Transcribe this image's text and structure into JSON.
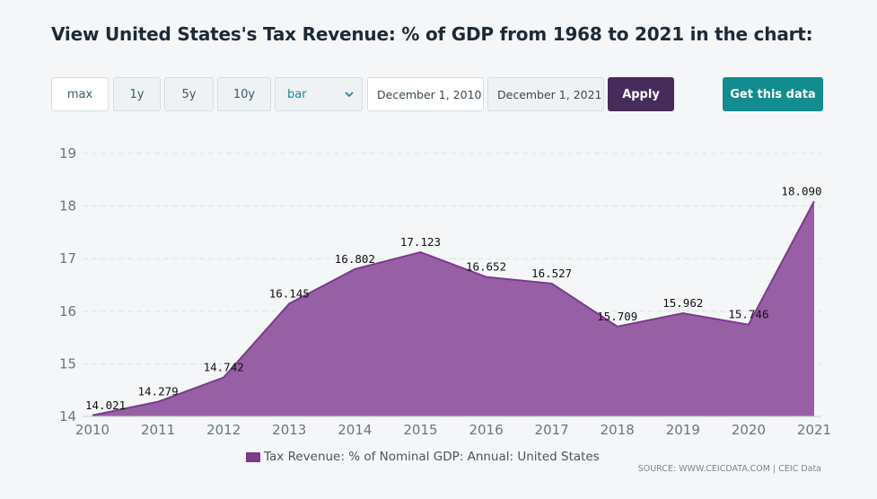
{
  "heading": "View United States's Tax Revenue: % of GDP from 1968 to 2021 in the chart:",
  "controls": {
    "range_buttons": [
      "max",
      "1y",
      "5y",
      "10y"
    ],
    "chart_type_value": "bar",
    "start_date": "December 1, 2010",
    "end_date": "December 1, 2021",
    "apply_label": "Apply",
    "get_data_label": "Get this data"
  },
  "colors": {
    "area_fill": "#8a4b97",
    "area_stroke": "#7c3a8c",
    "apply_bg": "#472c5b",
    "get_data_bg": "#128c8e"
  },
  "chart_data": {
    "type": "area",
    "categories": [
      "2010",
      "2011",
      "2012",
      "2013",
      "2014",
      "2015",
      "2016",
      "2017",
      "2018",
      "2019",
      "2020",
      "2021"
    ],
    "series": [
      {
        "name": "Tax Revenue: % of Nominal GDP: Annual: United States",
        "values": [
          14.021,
          14.279,
          14.742,
          16.145,
          16.802,
          17.123,
          16.652,
          16.527,
          15.709,
          15.962,
          15.746,
          18.09
        ],
        "labels": [
          "14.021",
          "14.279",
          "14.742",
          "16.145",
          "16.802",
          "17.123",
          "16.652",
          "16.527",
          "15.709",
          "15.962",
          "15.746",
          "18.090"
        ]
      }
    ],
    "y_ticks": [
      "14",
      "15",
      "16",
      "17",
      "18",
      "19"
    ],
    "ylim": [
      14,
      19
    ],
    "grid": true,
    "legend_position": "bottom-center"
  },
  "source": "SOURCE: WWW.CEICDATA.COM | CEIC Data"
}
